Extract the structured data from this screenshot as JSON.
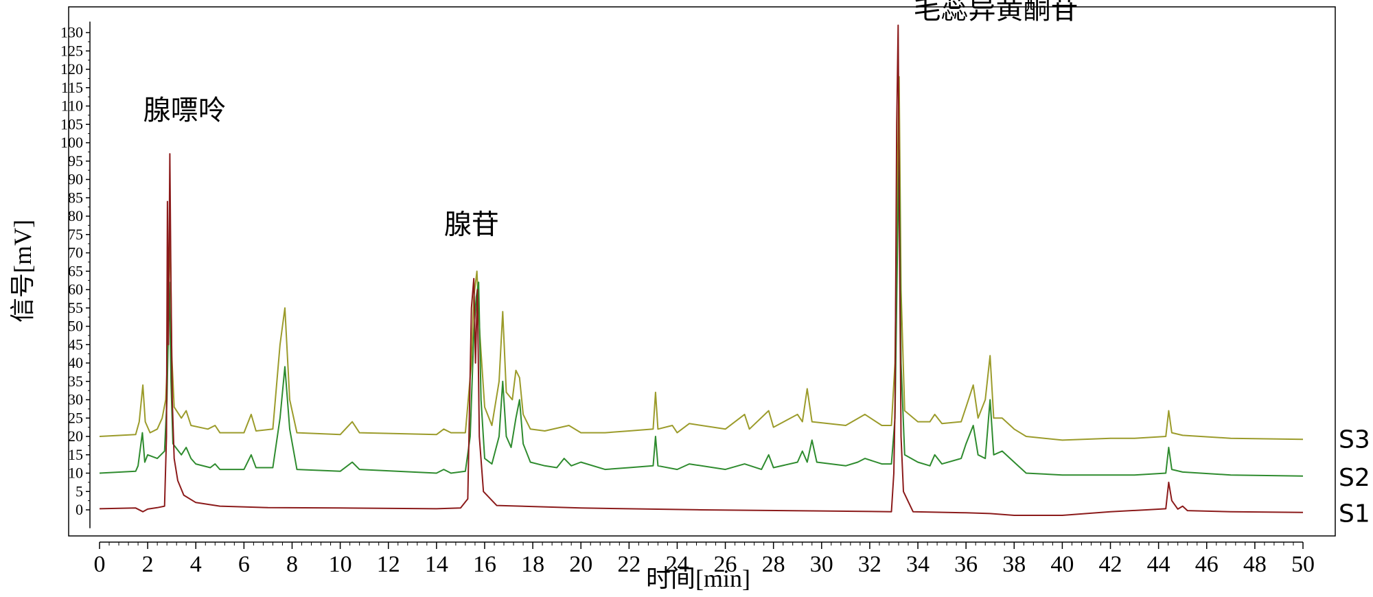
{
  "chart_data": {
    "type": "line",
    "xlabel": "时间[min]",
    "ylabel": "信号[mV]",
    "xlim": [
      0,
      50
    ],
    "ylim": [
      -5,
      135
    ],
    "xticks": [
      "0",
      "2",
      "4",
      "6",
      "8",
      "10",
      "12",
      "14",
      "16",
      "18",
      "20",
      "22",
      "24",
      "26",
      "28",
      "30",
      "32",
      "34",
      "36",
      "38",
      "40",
      "42",
      "44",
      "46",
      "48",
      "50"
    ],
    "yticks": [
      "0",
      "5",
      "10",
      "15",
      "20",
      "25",
      "30",
      "35",
      "40",
      "45",
      "50",
      "55",
      "60",
      "65",
      "70",
      "75",
      "80",
      "85",
      "90",
      "95",
      "100",
      "105",
      "110",
      "115",
      "120",
      "125",
      "130"
    ],
    "grid": false,
    "annotations": [
      {
        "text": "腺嘌呤",
        "x": 3.1,
        "y": 97
      },
      {
        "text": "腺苷",
        "x": 15.6,
        "y": 65
      },
      {
        "text": "毛蕊异黄酮苷",
        "x": 33.1,
        "y": 132
      }
    ],
    "series": [
      {
        "name": "S1",
        "color": "#8b1a1a",
        "points": [
          [
            0,
            0.3
          ],
          [
            1.5,
            0.5
          ],
          [
            1.8,
            -0.5
          ],
          [
            2.0,
            0.2
          ],
          [
            2.4,
            0.6
          ],
          [
            2.7,
            1.0
          ],
          [
            2.78,
            20
          ],
          [
            2.82,
            84
          ],
          [
            2.86,
            45
          ],
          [
            2.92,
            97
          ],
          [
            2.97,
            60
          ],
          [
            3.02,
            30
          ],
          [
            3.1,
            14
          ],
          [
            3.25,
            8
          ],
          [
            3.5,
            4
          ],
          [
            4,
            2
          ],
          [
            5,
            1
          ],
          [
            7,
            0.6
          ],
          [
            10,
            0.5
          ],
          [
            14,
            0.3
          ],
          [
            15.0,
            0.5
          ],
          [
            15.3,
            3
          ],
          [
            15.45,
            55
          ],
          [
            15.55,
            63
          ],
          [
            15.62,
            40
          ],
          [
            15.7,
            60
          ],
          [
            15.78,
            20
          ],
          [
            15.95,
            5
          ],
          [
            16.5,
            1.2
          ],
          [
            20,
            0.5
          ],
          [
            25,
            0.0
          ],
          [
            30,
            -0.3
          ],
          [
            32.9,
            -0.5
          ],
          [
            33.0,
            10
          ],
          [
            33.05,
            28
          ],
          [
            33.12,
            105
          ],
          [
            33.18,
            132
          ],
          [
            33.24,
            70
          ],
          [
            33.3,
            20
          ],
          [
            33.4,
            5
          ],
          [
            33.8,
            -0.5
          ],
          [
            36,
            -0.8
          ],
          [
            37,
            -1.0
          ],
          [
            38,
            -1.5
          ],
          [
            40,
            -1.5
          ],
          [
            42,
            -0.5
          ],
          [
            43.5,
            0.0
          ],
          [
            44.3,
            0.3
          ],
          [
            44.42,
            7.5
          ],
          [
            44.55,
            2.5
          ],
          [
            44.8,
            0.2
          ],
          [
            45,
            1
          ],
          [
            45.2,
            -0.2
          ],
          [
            47,
            -0.5
          ],
          [
            50,
            -0.7
          ]
        ]
      },
      {
        "name": "S2",
        "color": "#2e8b2e",
        "points": [
          [
            0,
            10
          ],
          [
            1.5,
            10.5
          ],
          [
            1.6,
            12
          ],
          [
            1.78,
            21
          ],
          [
            1.88,
            13
          ],
          [
            2.0,
            15
          ],
          [
            2.4,
            14
          ],
          [
            2.7,
            16
          ],
          [
            2.8,
            30
          ],
          [
            2.9,
            62
          ],
          [
            2.97,
            35
          ],
          [
            3.05,
            18
          ],
          [
            3.4,
            15
          ],
          [
            3.6,
            17
          ],
          [
            3.8,
            14
          ],
          [
            4,
            12.5
          ],
          [
            4.6,
            11.5
          ],
          [
            4.8,
            12.5
          ],
          [
            5,
            11
          ],
          [
            6,
            11
          ],
          [
            6.3,
            15
          ],
          [
            6.5,
            11.5
          ],
          [
            7.2,
            11.5
          ],
          [
            7.5,
            25
          ],
          [
            7.7,
            39
          ],
          [
            7.9,
            22
          ],
          [
            8.2,
            11
          ],
          [
            10,
            10.5
          ],
          [
            10.5,
            13
          ],
          [
            10.8,
            11
          ],
          [
            14,
            10
          ],
          [
            14.3,
            11
          ],
          [
            14.6,
            10
          ],
          [
            15.2,
            10.5
          ],
          [
            15.4,
            20
          ],
          [
            15.55,
            48
          ],
          [
            15.65,
            58
          ],
          [
            15.75,
            62
          ],
          [
            15.85,
            30
          ],
          [
            16.0,
            14
          ],
          [
            16.3,
            12.5
          ],
          [
            16.6,
            20
          ],
          [
            16.75,
            35
          ],
          [
            16.9,
            20
          ],
          [
            17.1,
            17
          ],
          [
            17.3,
            25
          ],
          [
            17.45,
            30
          ],
          [
            17.6,
            18
          ],
          [
            17.9,
            13
          ],
          [
            18.5,
            12
          ],
          [
            19,
            11.5
          ],
          [
            19.3,
            14
          ],
          [
            19.6,
            12
          ],
          [
            20,
            13
          ],
          [
            21,
            11
          ],
          [
            22,
            11.5
          ],
          [
            23.0,
            12
          ],
          [
            23.1,
            20
          ],
          [
            23.2,
            12
          ],
          [
            24,
            11
          ],
          [
            24.5,
            12.5
          ],
          [
            26,
            11
          ],
          [
            26.8,
            12.5
          ],
          [
            27.5,
            11
          ],
          [
            27.8,
            15
          ],
          [
            28,
            11.5
          ],
          [
            29,
            13
          ],
          [
            29.2,
            16
          ],
          [
            29.4,
            13
          ],
          [
            29.6,
            19
          ],
          [
            29.8,
            13
          ],
          [
            31,
            12
          ],
          [
            31.5,
            13
          ],
          [
            31.8,
            14
          ],
          [
            32.5,
            12.5
          ],
          [
            32.9,
            12.5
          ],
          [
            33.05,
            25
          ],
          [
            33.15,
            70
          ],
          [
            33.22,
            98
          ],
          [
            33.3,
            40
          ],
          [
            33.45,
            15
          ],
          [
            34,
            13
          ],
          [
            34.5,
            12
          ],
          [
            34.7,
            15
          ],
          [
            35,
            12.5
          ],
          [
            35.8,
            14
          ],
          [
            36.0,
            18
          ],
          [
            36.3,
            23
          ],
          [
            36.5,
            15
          ],
          [
            36.8,
            14
          ],
          [
            37.0,
            30
          ],
          [
            37.15,
            15
          ],
          [
            37.5,
            16
          ],
          [
            38.0,
            13
          ],
          [
            38.5,
            10
          ],
          [
            40,
            9.5
          ],
          [
            42,
            9.5
          ],
          [
            43,
            9.5
          ],
          [
            44.3,
            10
          ],
          [
            44.42,
            17
          ],
          [
            44.55,
            11
          ],
          [
            45,
            10.3
          ],
          [
            47,
            9.5
          ],
          [
            50,
            9.2
          ]
        ]
      },
      {
        "name": "S3",
        "color": "#9b9b2a",
        "points": [
          [
            0,
            20
          ],
          [
            1.5,
            20.5
          ],
          [
            1.65,
            24
          ],
          [
            1.8,
            34
          ],
          [
            1.9,
            24
          ],
          [
            2.1,
            21
          ],
          [
            2.4,
            22
          ],
          [
            2.6,
            25
          ],
          [
            2.75,
            30
          ],
          [
            2.85,
            45
          ],
          [
            2.93,
            80
          ],
          [
            3.0,
            42
          ],
          [
            3.1,
            28
          ],
          [
            3.4,
            25
          ],
          [
            3.6,
            27
          ],
          [
            3.8,
            23
          ],
          [
            4.5,
            22
          ],
          [
            4.8,
            23
          ],
          [
            5,
            21
          ],
          [
            6,
            21
          ],
          [
            6.3,
            26
          ],
          [
            6.5,
            21.5
          ],
          [
            7.2,
            22
          ],
          [
            7.5,
            45
          ],
          [
            7.7,
            55
          ],
          [
            7.9,
            30
          ],
          [
            8.2,
            21
          ],
          [
            10,
            20.5
          ],
          [
            10.5,
            24
          ],
          [
            10.8,
            21
          ],
          [
            14,
            20.5
          ],
          [
            14.3,
            22
          ],
          [
            14.6,
            21
          ],
          [
            15.2,
            21
          ],
          [
            15.45,
            40
          ],
          [
            15.55,
            58
          ],
          [
            15.68,
            65
          ],
          [
            15.8,
            48
          ],
          [
            16.0,
            28
          ],
          [
            16.3,
            23
          ],
          [
            16.6,
            35
          ],
          [
            16.75,
            54
          ],
          [
            16.9,
            32
          ],
          [
            17.15,
            30
          ],
          [
            17.3,
            38
          ],
          [
            17.45,
            36
          ],
          [
            17.6,
            26
          ],
          [
            17.9,
            22
          ],
          [
            18.5,
            21.5
          ],
          [
            19.5,
            23
          ],
          [
            20,
            21
          ],
          [
            21,
            21
          ],
          [
            22,
            21.5
          ],
          [
            23.0,
            22
          ],
          [
            23.1,
            32
          ],
          [
            23.2,
            22
          ],
          [
            23.8,
            23
          ],
          [
            24,
            21
          ],
          [
            24.5,
            23.5
          ],
          [
            26,
            22
          ],
          [
            26.8,
            26
          ],
          [
            27.0,
            22
          ],
          [
            27.8,
            27
          ],
          [
            28,
            22.5
          ],
          [
            29.0,
            26
          ],
          [
            29.2,
            24
          ],
          [
            29.4,
            33
          ],
          [
            29.6,
            24
          ],
          [
            31,
            23
          ],
          [
            31.8,
            26
          ],
          [
            32.5,
            23
          ],
          [
            32.9,
            23
          ],
          [
            33.05,
            40
          ],
          [
            33.15,
            90
          ],
          [
            33.22,
            118
          ],
          [
            33.3,
            60
          ],
          [
            33.45,
            27
          ],
          [
            34,
            24
          ],
          [
            34.5,
            24
          ],
          [
            34.7,
            26
          ],
          [
            35,
            23.5
          ],
          [
            35.8,
            24
          ],
          [
            36.0,
            28
          ],
          [
            36.3,
            34
          ],
          [
            36.5,
            25
          ],
          [
            36.8,
            30
          ],
          [
            37.0,
            42
          ],
          [
            37.15,
            25
          ],
          [
            37.5,
            25
          ],
          [
            38.0,
            22
          ],
          [
            38.5,
            20
          ],
          [
            40,
            19
          ],
          [
            42,
            19.5
          ],
          [
            43,
            19.5
          ],
          [
            44.3,
            20
          ],
          [
            44.42,
            27
          ],
          [
            44.55,
            21
          ],
          [
            45,
            20.3
          ],
          [
            47,
            19.5
          ],
          [
            50,
            19.2
          ]
        ]
      }
    ],
    "legend_labels": [
      {
        "text": "S3",
        "color": "#9b9b2a"
      },
      {
        "text": "S2",
        "color": "#2e8b2e"
      },
      {
        "text": "S1",
        "color": "#8b1a1a"
      }
    ]
  }
}
